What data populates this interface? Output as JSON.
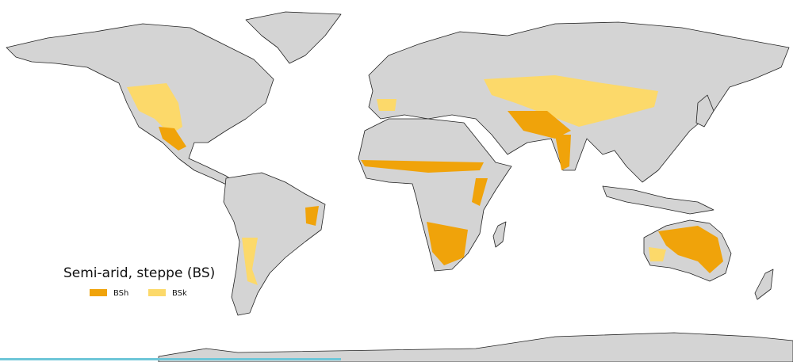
{
  "legend": {
    "title": "Semi-arid, steppe (BS)",
    "items": [
      {
        "label": "BSh",
        "color": "#f0a30a"
      },
      {
        "label": "BSk",
        "color": "#fcd96a"
      }
    ]
  }
}
